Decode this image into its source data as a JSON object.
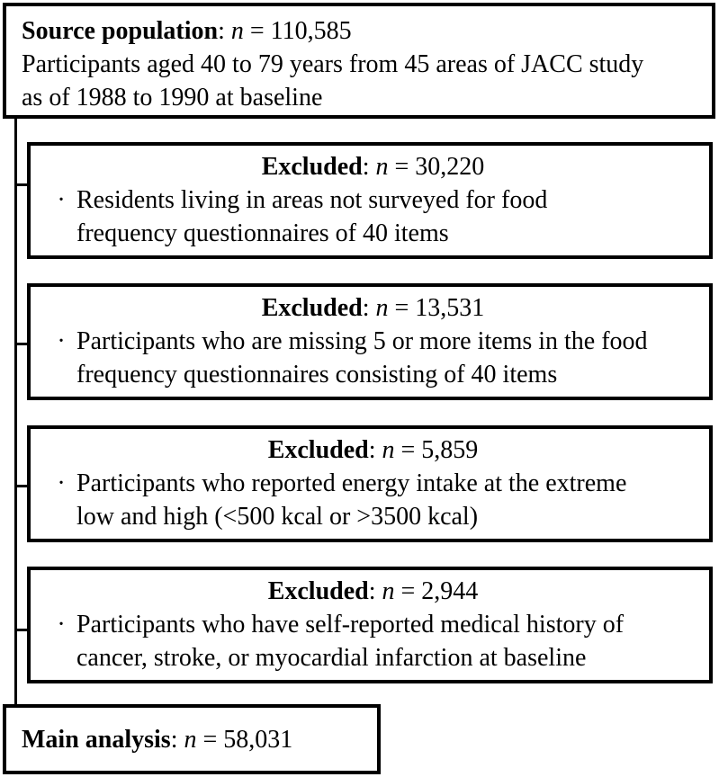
{
  "figure": {
    "type": "participant-flow-diagram",
    "colors": {
      "border": "#000000",
      "background": "#ffffff",
      "text": "#000000"
    }
  },
  "symbols": {
    "colon": ": ",
    "n": "n",
    "equals": " = ",
    "bullet": "·"
  },
  "source_box": {
    "label": "Source population",
    "n_value": "110,585",
    "description_lines": [
      "Participants aged 40 to 79 years from 45 areas of JACC study",
      "as of 1988 to 1990 at baseline"
    ]
  },
  "excluded_boxes": [
    {
      "label": "Excluded",
      "n_value": "30,220",
      "reason_lines": [
        "Residents living in areas not surveyed for food",
        "frequency questionnaires of 40 items"
      ]
    },
    {
      "label": "Excluded",
      "n_value": "13,531",
      "reason_lines": [
        "Participants who are missing 5 or more items in the food",
        "frequency questionnaires consisting of 40 items"
      ]
    },
    {
      "label": "Excluded",
      "n_value": "5,859",
      "reason_lines": [
        "Participants who reported energy intake at the extreme",
        "low and high (<500 kcal or >3500 kcal)"
      ]
    },
    {
      "label": "Excluded",
      "n_value": "2,944",
      "reason_lines": [
        "Participants who have self-reported medical history of",
        "cancer, stroke, or myocardial infarction at baseline"
      ]
    }
  ],
  "main_box": {
    "label": "Main analysis",
    "n_value": "58,031"
  }
}
